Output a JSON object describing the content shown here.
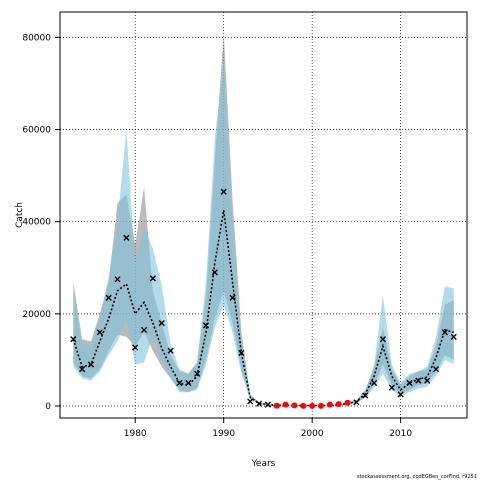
{
  "chart_data": {
    "type": "line",
    "xlabel": "Years",
    "ylabel": "Catch",
    "xlim": [
      1971.5,
      2017.5
    ],
    "ylim": [
      -2600,
      85500
    ],
    "xticks": [
      1980,
      1990,
      2000,
      2010
    ],
    "yticks": [
      0,
      20000,
      40000,
      60000,
      80000
    ],
    "grid": true,
    "credit": "stockassessment.org, codEGBen_corFind, r9251",
    "colors": {
      "grey_band": "#8c8c8c",
      "blue_band": "#7ec3e0",
      "line": "#000000",
      "cross": "#000000",
      "red": "#ff0000",
      "grid": "#000000"
    },
    "series": [
      {
        "role": "grey-band",
        "x": [
          1973,
          1974,
          1975,
          1976,
          1977,
          1978,
          1979,
          1980,
          1981,
          1982,
          1983,
          1984,
          1985,
          1986,
          1987,
          1988,
          1989,
          1990,
          1991,
          1992,
          1993,
          1994,
          1995,
          1996,
          1997,
          1998,
          1999,
          2000,
          2001,
          2002,
          2003,
          2004,
          2005,
          2006,
          2007,
          2008,
          2009,
          2010,
          2011,
          2012,
          2013,
          2014,
          2015,
          2016
        ],
        "upper": [
          27000,
          14500,
          14000,
          20000,
          27000,
          44000,
          46000,
          35000,
          47500,
          25000,
          18000,
          11000,
          7500,
          7000,
          9500,
          24000,
          53000,
          81000,
          45000,
          16000,
          2500,
          800,
          400,
          200,
          200,
          200,
          150,
          150,
          150,
          200,
          350,
          700,
          1300,
          3500,
          8500,
          17000,
          8000,
          4500,
          6500,
          7500,
          8000,
          13000,
          22000,
          23000
        ],
        "lower": [
          9500,
          6500,
          6000,
          8000,
          12000,
          15500,
          15000,
          13000,
          16000,
          12000,
          8500,
          6000,
          3500,
          3000,
          4000,
          10000,
          19000,
          25000,
          18000,
          8000,
          1500,
          400,
          200,
          100,
          100,
          100,
          80,
          80,
          80,
          100,
          200,
          400,
          700,
          2000,
          4500,
          9000,
          4500,
          2500,
          3500,
          4500,
          5000,
          7500,
          11000,
          10000
        ]
      },
      {
        "role": "blue-band",
        "x": [
          1973,
          1974,
          1975,
          1976,
          1977,
          1978,
          1979,
          1980,
          1981,
          1982,
          1983,
          1984,
          1985,
          1986,
          1987,
          1988,
          1989,
          1990,
          1991,
          1992,
          1993,
          1994,
          1995,
          1996,
          1997,
          1998,
          1999,
          2000,
          2001,
          2002,
          2003,
          2004,
          2005,
          2006,
          2007,
          2008,
          2009,
          2010,
          2011,
          2012,
          2013,
          2014,
          2015,
          2016
        ],
        "upper": [
          25000,
          13500,
          13000,
          19000,
          28000,
          40000,
          60000,
          31000,
          39000,
          34000,
          26000,
          13500,
          8000,
          7000,
          9500,
          27000,
          58000,
          75000,
          40000,
          14000,
          2300,
          700,
          350,
          200,
          200,
          150,
          150,
          150,
          150,
          200,
          300,
          650,
          1200,
          3000,
          9000,
          24000,
          9000,
          5000,
          7000,
          7500,
          8500,
          15000,
          26000,
          25500
        ],
        "lower": [
          8500,
          6000,
          5500,
          7500,
          11000,
          14000,
          19000,
          9000,
          9500,
          15000,
          10000,
          6000,
          3000,
          3000,
          3500,
          9000,
          17000,
          22000,
          16000,
          7000,
          1300,
          350,
          200,
          100,
          100,
          100,
          80,
          80,
          80,
          100,
          200,
          350,
          600,
          1700,
          4000,
          7000,
          3500,
          2000,
          3000,
          3800,
          4200,
          6500,
          10000,
          9000
        ]
      },
      {
        "role": "median-line",
        "x": [
          1973,
          1974,
          1975,
          1976,
          1977,
          1978,
          1979,
          1980,
          1981,
          1982,
          1983,
          1984,
          1985,
          1986,
          1987,
          1988,
          1989,
          1990,
          1991,
          1992,
          1993,
          1994,
          1995,
          1996,
          1997,
          1998,
          1999,
          2000,
          2001,
          2002,
          2003,
          2004,
          2005,
          2006,
          2007,
          2008,
          2009,
          2010,
          2011,
          2012,
          2013,
          2014,
          2015,
          2016
        ],
        "y": [
          14500,
          8500,
          9000,
          14000,
          19000,
          25000,
          26500,
          20000,
          22500,
          18000,
          12500,
          8500,
          5000,
          4500,
          6500,
          16000,
          31000,
          42500,
          27000,
          11500,
          1900,
          550,
          300,
          150,
          150,
          150,
          120,
          120,
          120,
          150,
          250,
          550,
          1000,
          2600,
          6500,
          13000,
          6500,
          3500,
          5000,
          5800,
          6300,
          10500,
          16500,
          16000
        ]
      },
      {
        "role": "observed-catch",
        "x": [
          1973,
          1974,
          1975,
          1976,
          1977,
          1978,
          1979,
          1980,
          1981,
          1982,
          1983,
          1984,
          1985,
          1986,
          1987,
          1988,
          1989,
          1990,
          1991,
          1992,
          1993,
          1994,
          1995,
          2005,
          2006,
          2007,
          2008,
          2009,
          2010,
          2011,
          2012,
          2013,
          2014,
          2015,
          2016
        ],
        "y": [
          14500,
          8000,
          9000,
          16000,
          23500,
          27500,
          36500,
          12700,
          16500,
          27700,
          18000,
          12000,
          5000,
          5000,
          7000,
          17500,
          29000,
          46500,
          23500,
          11500,
          1000,
          500,
          300,
          800,
          2300,
          5000,
          14500,
          4000,
          2500,
          5000,
          5500,
          5500,
          8000,
          16000,
          15000
        ]
      },
      {
        "role": "red-points",
        "x": [
          1996,
          1997,
          1998,
          1999,
          2000,
          2001,
          2002,
          2003,
          2004
        ],
        "y": [
          50,
          300,
          150,
          30,
          30,
          30,
          300,
          400,
          700
        ]
      }
    ]
  }
}
